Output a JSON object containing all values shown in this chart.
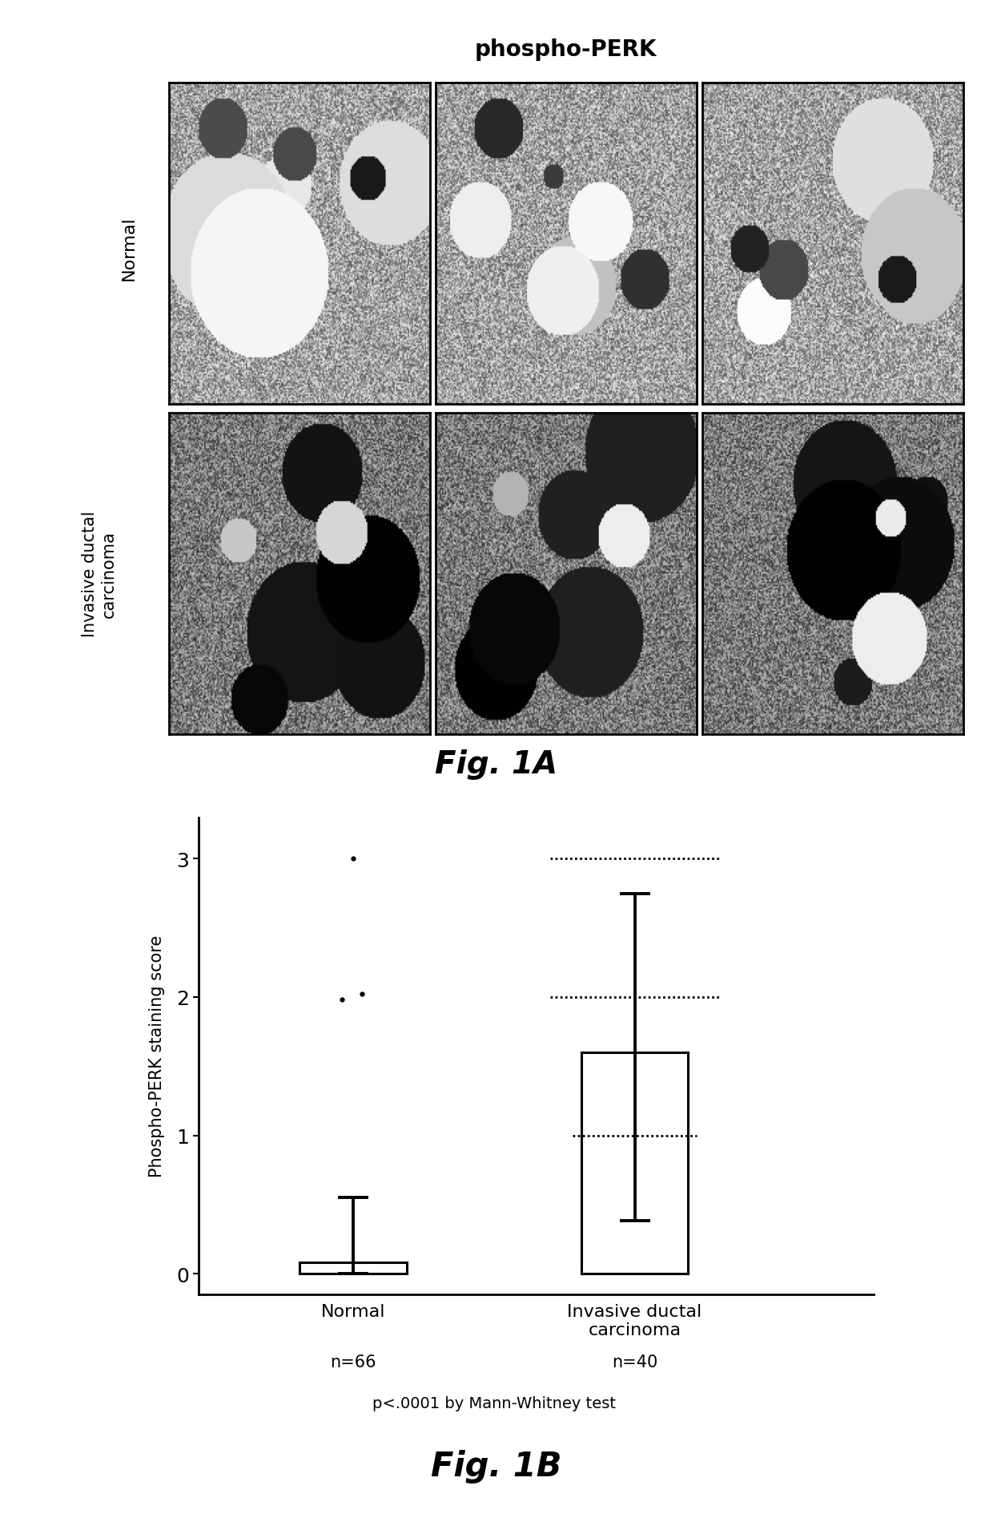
{
  "fig1a_title": "phospho-PERK",
  "fig1a_label": "Fig. 1A",
  "fig1b_label": "Fig. 1B",
  "bar_categories": [
    "Normal",
    "Invasive ductal\ncarcinoma"
  ],
  "bar_means": [
    0.08,
    1.6
  ],
  "bar_errors_upper": [
    0.55,
    2.75
  ],
  "bar_errors_lower": [
    0.0,
    0.38
  ],
  "ylabel": "Phospho-PERK staining score",
  "yticks": [
    0,
    1,
    2,
    3
  ],
  "ylim": [
    -0.15,
    3.3
  ],
  "n_labels": [
    "n=66",
    "n=40"
  ],
  "stat_text": "p<.0001 by Mann-Whitney test",
  "background_color": "#ffffff"
}
